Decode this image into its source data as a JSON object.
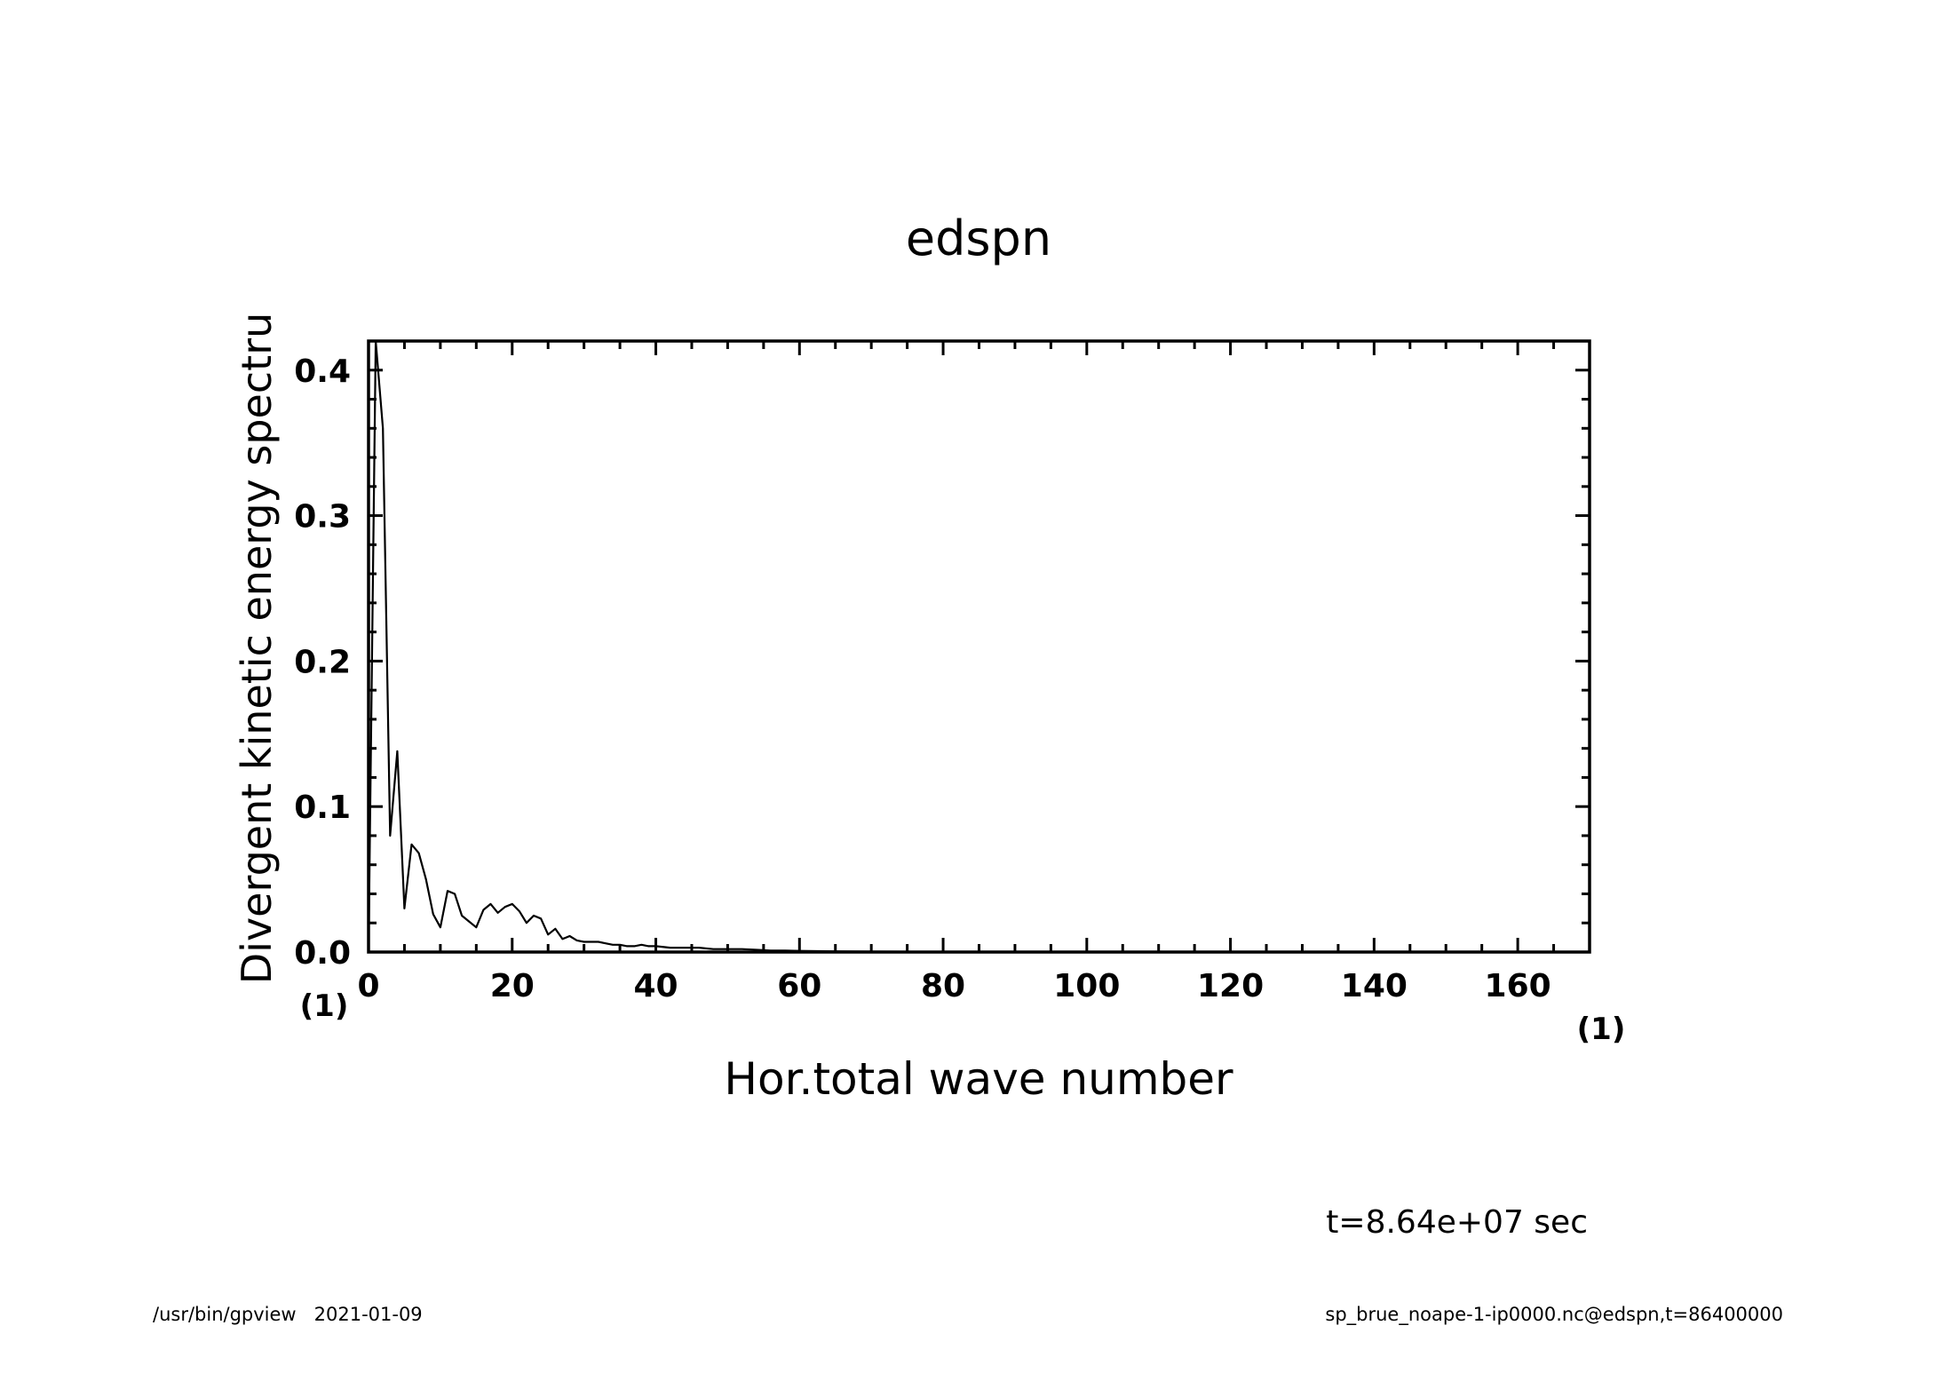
{
  "chart_data": {
    "type": "line",
    "title": "edspn",
    "xlabel": "Hor.total wave number",
    "ylabel": "Divergent kinetic energy spectru",
    "x_unit": "(1)",
    "y_unit": "(1)",
    "xlim": [
      0,
      170
    ],
    "ylim": [
      0,
      0.42
    ],
    "xticks": [
      0,
      20,
      40,
      60,
      80,
      100,
      120,
      140,
      160
    ],
    "yticks": [
      0.0,
      0.1,
      0.2,
      0.3,
      0.4
    ],
    "ytick_labels": [
      "0.0",
      "0.1",
      "0.2",
      "0.3",
      "0.4"
    ],
    "grid": false,
    "legend": "none",
    "series": [
      {
        "x": [
          0,
          1,
          2,
          3,
          4,
          5,
          6,
          7,
          8,
          9,
          10,
          11,
          12,
          13,
          14,
          15,
          16,
          17,
          18,
          19,
          20,
          21,
          22,
          23,
          24,
          25,
          26,
          27,
          28,
          29,
          30,
          31,
          32,
          33,
          34,
          35,
          36,
          37,
          38,
          39,
          40,
          42,
          44,
          46,
          48,
          50,
          52,
          54,
          56,
          58,
          60,
          65,
          70,
          80,
          90,
          100,
          110,
          120,
          130,
          140,
          150,
          160,
          170
        ],
        "values": [
          0.0,
          0.42,
          0.36,
          0.08,
          0.138,
          0.03,
          0.074,
          0.068,
          0.05,
          0.026,
          0.017,
          0.042,
          0.04,
          0.025,
          0.021,
          0.017,
          0.029,
          0.033,
          0.027,
          0.031,
          0.033,
          0.028,
          0.02,
          0.025,
          0.023,
          0.012,
          0.016,
          0.009,
          0.011,
          0.008,
          0.007,
          0.007,
          0.007,
          0.006,
          0.005,
          0.005,
          0.004,
          0.004,
          0.005,
          0.004,
          0.004,
          0.003,
          0.003,
          0.003,
          0.002,
          0.002,
          0.002,
          0.0015,
          0.001,
          0.001,
          0.0008,
          0.0005,
          0.0003,
          0.0002,
          0.0001,
          0.0001,
          0.0001,
          0.0,
          0.0,
          0.0,
          0.0,
          0.0,
          0.0
        ]
      }
    ]
  },
  "footer": {
    "time_label": "t=8.64e+07 sec",
    "left": "/usr/bin/gpview   2021-01-09",
    "right": "sp_brue_noape-1-ip0000.nc@edspn,t=86400000"
  }
}
